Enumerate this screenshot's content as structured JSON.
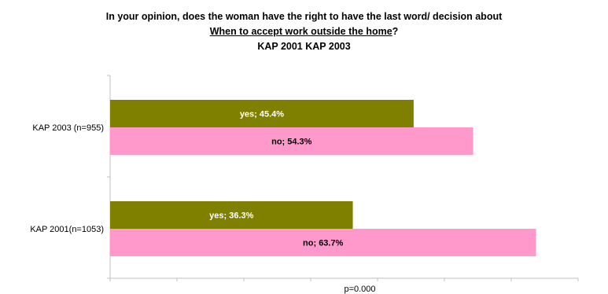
{
  "chart_data": {
    "type": "bar",
    "orientation": "horizontal",
    "title_lines": [
      "In your opinion, does the woman have the right to have the last word/ decision about",
      "When to accept work outside the home",
      "KAP 2001 KAP 2003"
    ],
    "title_line2_suffix": "?",
    "categories": [
      "KAP 2003 (n=955)",
      "KAP 2001(n=1053)"
    ],
    "series": [
      {
        "key": "yes",
        "values": [
          45.4,
          36.3
        ],
        "labels": [
          "yes; 45.4%",
          "yes; 36.3%"
        ],
        "color": "#808000",
        "label_color": "#ffffff"
      },
      {
        "key": "no",
        "values": [
          54.3,
          63.7
        ],
        "labels": [
          "no; 54.3%",
          "no; 63.7%"
        ],
        "color": "#ff99cc",
        "label_color": "#000000"
      }
    ],
    "xlim": [
      0,
      70
    ],
    "xlabel": "p=0.000",
    "grid": false,
    "legend": "none"
  }
}
